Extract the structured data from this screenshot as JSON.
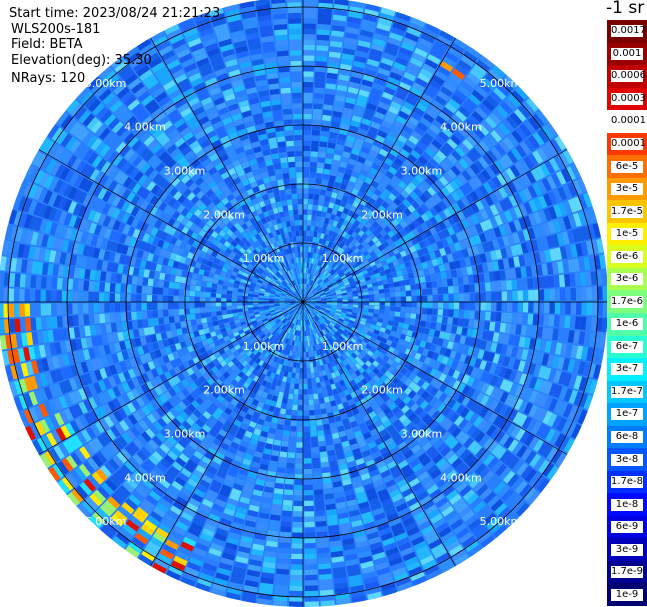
{
  "header": {
    "start_time": "Start time: 2023/08/24 21:21:23",
    "instrument": "WLS200s-181",
    "field": "Field: BETA",
    "elevation": "Elevation(deg): 35.30",
    "nrays": "NRays: 120"
  },
  "colorbar": {
    "unit_label": "-1 sr",
    "ticks": [
      "0.0017",
      "0.001",
      "0.0006",
      "0.0003",
      "0.00017",
      "0.0001",
      "6e-5",
      "3e-5",
      "1.7e-5",
      "1e-5",
      "6e-6",
      "3e-6",
      "1.7e-6",
      "1e-6",
      "6e-7",
      "3e-7",
      "1.7e-7",
      "1e-7",
      "6e-8",
      "3e-8",
      "1.7e-8",
      "1e-8",
      "6e-9",
      "3e-9",
      "1.7e-9",
      "1e-9"
    ],
    "colors": [
      "#7a0000",
      "#9a0000",
      "#c00000",
      "#e00000",
      "#ffffff",
      "#ff3a00",
      "#ff7000",
      "#ff9a00",
      "#ffc400",
      "#ffee00",
      "#d8ff1e",
      "#a8ff50",
      "#7dff7d",
      "#52ffa8",
      "#2affd4",
      "#00f0ff",
      "#00c8ff",
      "#00a2ff",
      "#007cff",
      "#0056ff",
      "#0030ff",
      "#000aff",
      "#0000e0",
      "#0000b8",
      "#000090",
      "#000070"
    ]
  },
  "chart_data": {
    "type": "heatmap",
    "projection": "polar-ppi",
    "field": "BETA",
    "nrays": 120,
    "range_rings_km": [
      1,
      2,
      3,
      4,
      5
    ],
    "range_labels": [
      "1.00km",
      "2.00km",
      "3.00km",
      "4.00km",
      "5.00km"
    ],
    "typical_values": "1e-7 to 6e-7 (blue-cyan) across most of the scan",
    "highlights": [
      {
        "azimuth_range_deg": [
          245,
          270
        ],
        "range_km": [
          4.6,
          5.1
        ],
        "value_range": "3e-6 to 1e-5"
      },
      {
        "azimuth_range_deg": [
          205,
          245
        ],
        "range_km": [
          4.4,
          5.1
        ],
        "value_range": "1e-6 to 1e-5"
      },
      {
        "azimuth_range_deg": [
          30,
          36
        ],
        "range_km": [
          4.5,
          4.7
        ],
        "value_range": "1e-5"
      }
    ]
  }
}
